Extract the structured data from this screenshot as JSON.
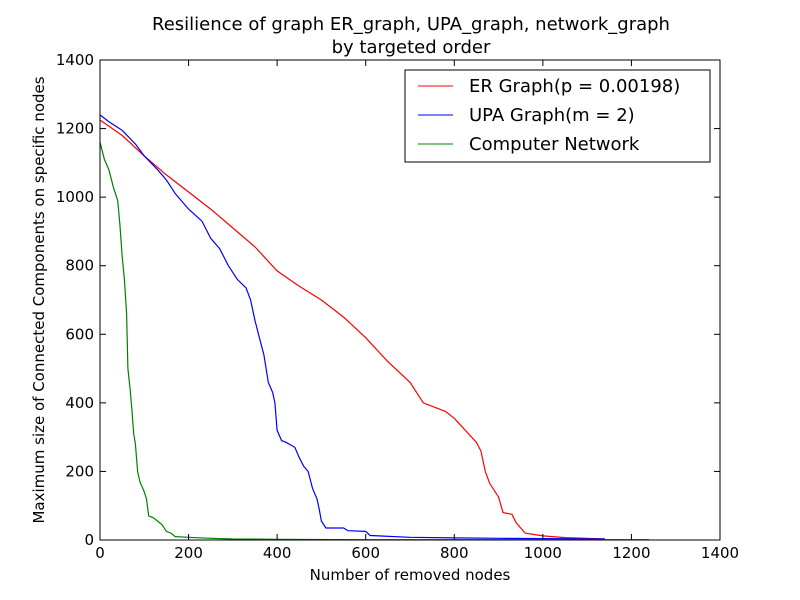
{
  "chart_data": {
    "type": "line",
    "title_line1": "Resilience of graph ER_graph, UPA_graph, network_graph",
    "title_line2": "by targeted order",
    "xlabel": "Number of removed nodes",
    "ylabel": "Maximum size of Connected Components on specific nodes",
    "xlim": [
      0,
      1400
    ],
    "ylim": [
      0,
      1400
    ],
    "xticks": [
      0,
      200,
      400,
      600,
      800,
      1000,
      1200,
      1400
    ],
    "yticks": [
      0,
      200,
      400,
      600,
      800,
      1000,
      1200,
      1400
    ],
    "grid": false,
    "legend_position": "top-right",
    "series": [
      {
        "name": "ER Graph(p = 0.00198)",
        "color": "#ff0000",
        "points": [
          [
            0,
            1225
          ],
          [
            50,
            1180
          ],
          [
            100,
            1120
          ],
          [
            150,
            1065
          ],
          [
            200,
            1015
          ],
          [
            250,
            965
          ],
          [
            300,
            910
          ],
          [
            350,
            855
          ],
          [
            400,
            785
          ],
          [
            450,
            740
          ],
          [
            500,
            700
          ],
          [
            550,
            650
          ],
          [
            600,
            590
          ],
          [
            650,
            520
          ],
          [
            700,
            460
          ],
          [
            730,
            400
          ],
          [
            780,
            375
          ],
          [
            800,
            355
          ],
          [
            850,
            285
          ],
          [
            860,
            260
          ],
          [
            870,
            200
          ],
          [
            880,
            165
          ],
          [
            900,
            125
          ],
          [
            910,
            80
          ],
          [
            930,
            75
          ],
          [
            940,
            50
          ],
          [
            960,
            20
          ],
          [
            1000,
            12
          ],
          [
            1050,
            7
          ],
          [
            1100,
            5
          ],
          [
            1140,
            3
          ]
        ]
      },
      {
        "name": "UPA Graph(m = 2)",
        "color": "#0000ff",
        "points": [
          [
            0,
            1240
          ],
          [
            20,
            1220
          ],
          [
            50,
            1195
          ],
          [
            80,
            1155
          ],
          [
            100,
            1120
          ],
          [
            130,
            1080
          ],
          [
            150,
            1050
          ],
          [
            170,
            1010
          ],
          [
            200,
            965
          ],
          [
            230,
            930
          ],
          [
            250,
            880
          ],
          [
            270,
            850
          ],
          [
            290,
            800
          ],
          [
            310,
            760
          ],
          [
            330,
            735
          ],
          [
            340,
            700
          ],
          [
            350,
            640
          ],
          [
            360,
            590
          ],
          [
            370,
            540
          ],
          [
            380,
            460
          ],
          [
            390,
            430
          ],
          [
            395,
            400
          ],
          [
            400,
            320
          ],
          [
            410,
            290
          ],
          [
            420,
            285
          ],
          [
            440,
            270
          ],
          [
            450,
            240
          ],
          [
            460,
            215
          ],
          [
            470,
            200
          ],
          [
            480,
            150
          ],
          [
            490,
            120
          ],
          [
            495,
            90
          ],
          [
            500,
            55
          ],
          [
            510,
            35
          ],
          [
            550,
            35
          ],
          [
            560,
            27
          ],
          [
            600,
            25
          ],
          [
            610,
            13
          ],
          [
            700,
            8
          ],
          [
            800,
            6
          ],
          [
            900,
            5
          ],
          [
            1000,
            4
          ],
          [
            1140,
            3
          ]
        ]
      },
      {
        "name": "Computer Network",
        "color": "#008000",
        "points": [
          [
            0,
            1160
          ],
          [
            10,
            1110
          ],
          [
            20,
            1080
          ],
          [
            30,
            1030
          ],
          [
            40,
            990
          ],
          [
            45,
            920
          ],
          [
            50,
            830
          ],
          [
            55,
            760
          ],
          [
            60,
            660
          ],
          [
            63,
            500
          ],
          [
            68,
            440
          ],
          [
            72,
            380
          ],
          [
            76,
            310
          ],
          [
            80,
            280
          ],
          [
            85,
            200
          ],
          [
            90,
            170
          ],
          [
            100,
            140
          ],
          [
            105,
            120
          ],
          [
            110,
            70
          ],
          [
            120,
            65
          ],
          [
            130,
            55
          ],
          [
            140,
            45
          ],
          [
            150,
            25
          ],
          [
            160,
            20
          ],
          [
            170,
            10
          ],
          [
            200,
            8
          ],
          [
            250,
            5
          ],
          [
            300,
            3
          ],
          [
            400,
            2
          ],
          [
            600,
            1
          ],
          [
            800,
            1
          ],
          [
            1000,
            1
          ],
          [
            1240,
            1
          ]
        ]
      }
    ]
  }
}
